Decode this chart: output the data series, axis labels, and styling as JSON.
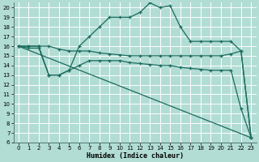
{
  "xlabel": "Humidex (Indice chaleur)",
  "bg_color": "#b2ddd4",
  "grid_color": "#ffffff",
  "line_color": "#1a6b5e",
  "xlim": [
    -0.5,
    23.5
  ],
  "ylim": [
    6,
    20.5
  ],
  "yticks": [
    6,
    7,
    8,
    9,
    10,
    11,
    12,
    13,
    14,
    15,
    16,
    17,
    18,
    19,
    20
  ],
  "xticks": [
    0,
    1,
    2,
    3,
    4,
    5,
    6,
    7,
    8,
    9,
    10,
    11,
    12,
    13,
    14,
    15,
    16,
    17,
    18,
    19,
    20,
    21,
    22,
    23
  ],
  "line1_x": [
    0,
    1,
    2,
    3,
    4,
    5,
    6,
    7,
    8,
    9,
    10,
    11,
    12,
    13,
    14,
    15,
    16,
    17,
    18,
    19,
    20,
    21,
    22,
    23
  ],
  "line1_y": [
    16,
    15.8,
    15.8,
    13,
    13,
    13.5,
    16,
    17,
    18,
    19,
    19,
    19,
    19.5,
    20.5,
    20,
    20.2,
    18,
    16.5,
    16.5,
    16.5,
    16.5,
    16.5,
    15.5,
    6.5
  ],
  "line2_x": [
    0,
    1,
    2,
    3,
    4,
    5,
    6,
    7,
    8,
    9,
    10,
    11,
    12,
    13,
    14,
    15,
    16,
    17,
    18,
    19,
    20,
    21,
    22,
    23
  ],
  "line2_y": [
    16,
    16,
    16,
    16,
    15.7,
    15.5,
    15.5,
    15.5,
    15.3,
    15.2,
    15.1,
    15,
    15,
    15,
    15,
    15,
    15,
    15,
    15,
    15,
    15,
    15.2,
    15.5,
    6.5
  ],
  "line3_x": [
    0,
    1,
    2,
    3,
    4,
    5,
    6,
    7,
    8,
    9,
    10,
    11,
    12,
    13,
    14,
    15,
    16,
    17,
    18,
    19,
    20,
    21,
    22,
    23
  ],
  "line3_y": [
    16,
    16,
    16,
    13,
    13,
    13.5,
    14,
    14.5,
    14.5,
    14.5,
    14.5,
    14.3,
    14.2,
    14.1,
    14,
    14,
    13.8,
    13.7,
    13.6,
    13.5,
    13.5,
    13.5,
    9.5,
    6.5
  ],
  "line4_x": [
    0,
    23
  ],
  "line4_y": [
    16,
    6.5
  ]
}
